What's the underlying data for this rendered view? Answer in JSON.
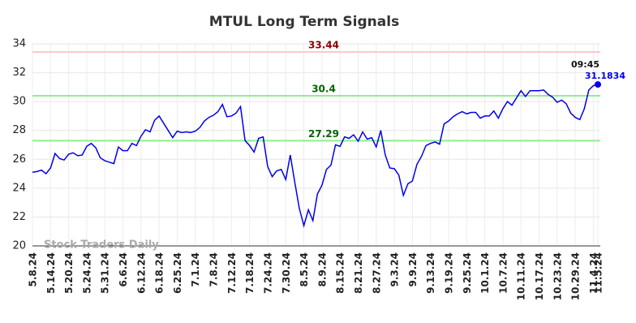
{
  "chart_data": {
    "type": "line",
    "title": "MTUL Long Term Signals",
    "watermark": "Stock Traders Daily",
    "categories": [
      "5.8.24",
      null,
      null,
      null,
      "5.14.24",
      null,
      null,
      null,
      "5.20.24",
      null,
      null,
      null,
      "5.24.24",
      null,
      null,
      null,
      "5.31.24",
      null,
      null,
      null,
      "6.6.24",
      null,
      null,
      null,
      "6.12.24",
      null,
      null,
      null,
      "6.18.24",
      null,
      null,
      null,
      "6.25.24",
      null,
      null,
      null,
      "7.1.24",
      null,
      null,
      null,
      "7.8.24",
      null,
      null,
      null,
      "7.12.24",
      null,
      null,
      null,
      "7.18.24",
      null,
      null,
      null,
      "7.24.24",
      null,
      null,
      null,
      "7.30.24",
      null,
      null,
      null,
      "8.5.24",
      null,
      null,
      null,
      "8.9.24",
      null,
      null,
      null,
      "8.15.24",
      null,
      null,
      null,
      "8.21.24",
      null,
      null,
      null,
      "8.27.24",
      null,
      null,
      null,
      "9.3.24",
      null,
      null,
      null,
      "9.9.24",
      null,
      null,
      null,
      "9.13.24",
      null,
      null,
      null,
      "9.19.24",
      null,
      null,
      null,
      "9.25.24",
      null,
      null,
      null,
      "10.1.24",
      null,
      null,
      null,
      "10.7.24",
      null,
      null,
      null,
      "10.11.24",
      null,
      null,
      null,
      "10.17.24",
      null,
      null,
      null,
      "10.23.24",
      null,
      null,
      null,
      "10.29.24",
      null,
      null,
      null,
      "11.4.24",
      "11.5.24"
    ],
    "values": [
      25.1,
      25.15,
      25.25,
      25.0,
      25.4,
      26.4,
      26.05,
      25.95,
      26.35,
      26.45,
      26.25,
      26.3,
      26.9,
      27.1,
      26.8,
      26.1,
      25.9,
      25.8,
      25.7,
      26.85,
      26.6,
      26.6,
      27.1,
      26.95,
      27.6,
      28.05,
      27.9,
      28.7,
      29.0,
      28.5,
      28.0,
      27.5,
      27.95,
      27.85,
      27.9,
      27.85,
      27.95,
      28.2,
      28.65,
      28.9,
      29.05,
      29.3,
      29.8,
      28.95,
      29.0,
      29.2,
      29.65,
      27.3,
      26.95,
      26.5,
      27.45,
      27.55,
      25.5,
      24.8,
      25.2,
      25.3,
      24.6,
      26.3,
      24.4,
      22.6,
      21.4,
      22.5,
      21.75,
      23.6,
      24.2,
      25.3,
      25.6,
      27.0,
      26.9,
      27.55,
      27.45,
      27.7,
      27.25,
      27.9,
      27.4,
      27.5,
      26.85,
      28.0,
      26.3,
      25.4,
      25.35,
      24.9,
      23.5,
      24.3,
      24.5,
      25.65,
      26.2,
      26.95,
      27.1,
      27.2,
      27.05,
      28.45,
      28.65,
      28.95,
      29.15,
      29.3,
      29.15,
      29.25,
      29.25,
      28.85,
      29.0,
      29.0,
      29.35,
      28.85,
      29.5,
      30.0,
      29.75,
      30.25,
      30.75,
      30.35,
      30.75,
      30.75,
      30.75,
      30.8,
      30.5,
      30.3,
      29.95,
      30.1,
      29.85,
      29.2,
      28.9,
      28.75,
      29.5,
      30.8,
      31.1,
      31.1834
    ],
    "color": "#0000ee",
    "last_time": "09:45",
    "hlines": [
      {
        "value": 33.44,
        "color": "#ffc8c8",
        "label_color": "#8b0000"
      },
      {
        "value": 30.4,
        "color": "#90ee90",
        "label_color": "#006400"
      },
      {
        "value": 27.29,
        "color": "#90ee90",
        "label_color": "#006400"
      }
    ],
    "ylim": [
      20,
      34
    ],
    "yticks": [
      20,
      22,
      24,
      26,
      28,
      30,
      32,
      34
    ],
    "grid": true
  }
}
